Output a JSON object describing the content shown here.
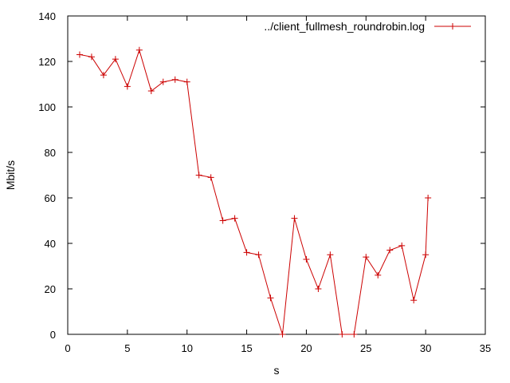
{
  "chart_data": {
    "type": "line",
    "xlabel": "s",
    "ylabel": "Mbit/s",
    "xlim": [
      0,
      35
    ],
    "ylim": [
      0,
      140
    ],
    "xticks": [
      0,
      5,
      10,
      15,
      20,
      25,
      30,
      35
    ],
    "yticks": [
      0,
      20,
      40,
      60,
      80,
      100,
      120,
      140
    ],
    "grid": false,
    "legend_position": "top-right",
    "series": [
      {
        "name": "../client_fullmesh_roundrobin.log",
        "color": "#cc0000",
        "marker": "plus",
        "x": [
          1,
          2,
          3,
          4,
          5,
          6,
          7,
          8,
          9,
          10,
          11,
          12,
          13,
          14,
          15,
          16,
          17,
          18,
          19,
          20,
          21,
          22,
          23,
          24,
          25,
          26,
          27,
          28,
          29,
          30,
          30.2
        ],
        "y": [
          123,
          122,
          114,
          121,
          109,
          125,
          107,
          111,
          112,
          111,
          70,
          69,
          50,
          51,
          36,
          35,
          16,
          0,
          51,
          33,
          20,
          35,
          0,
          0,
          34,
          26,
          37,
          39,
          15,
          35,
          60
        ]
      }
    ]
  }
}
